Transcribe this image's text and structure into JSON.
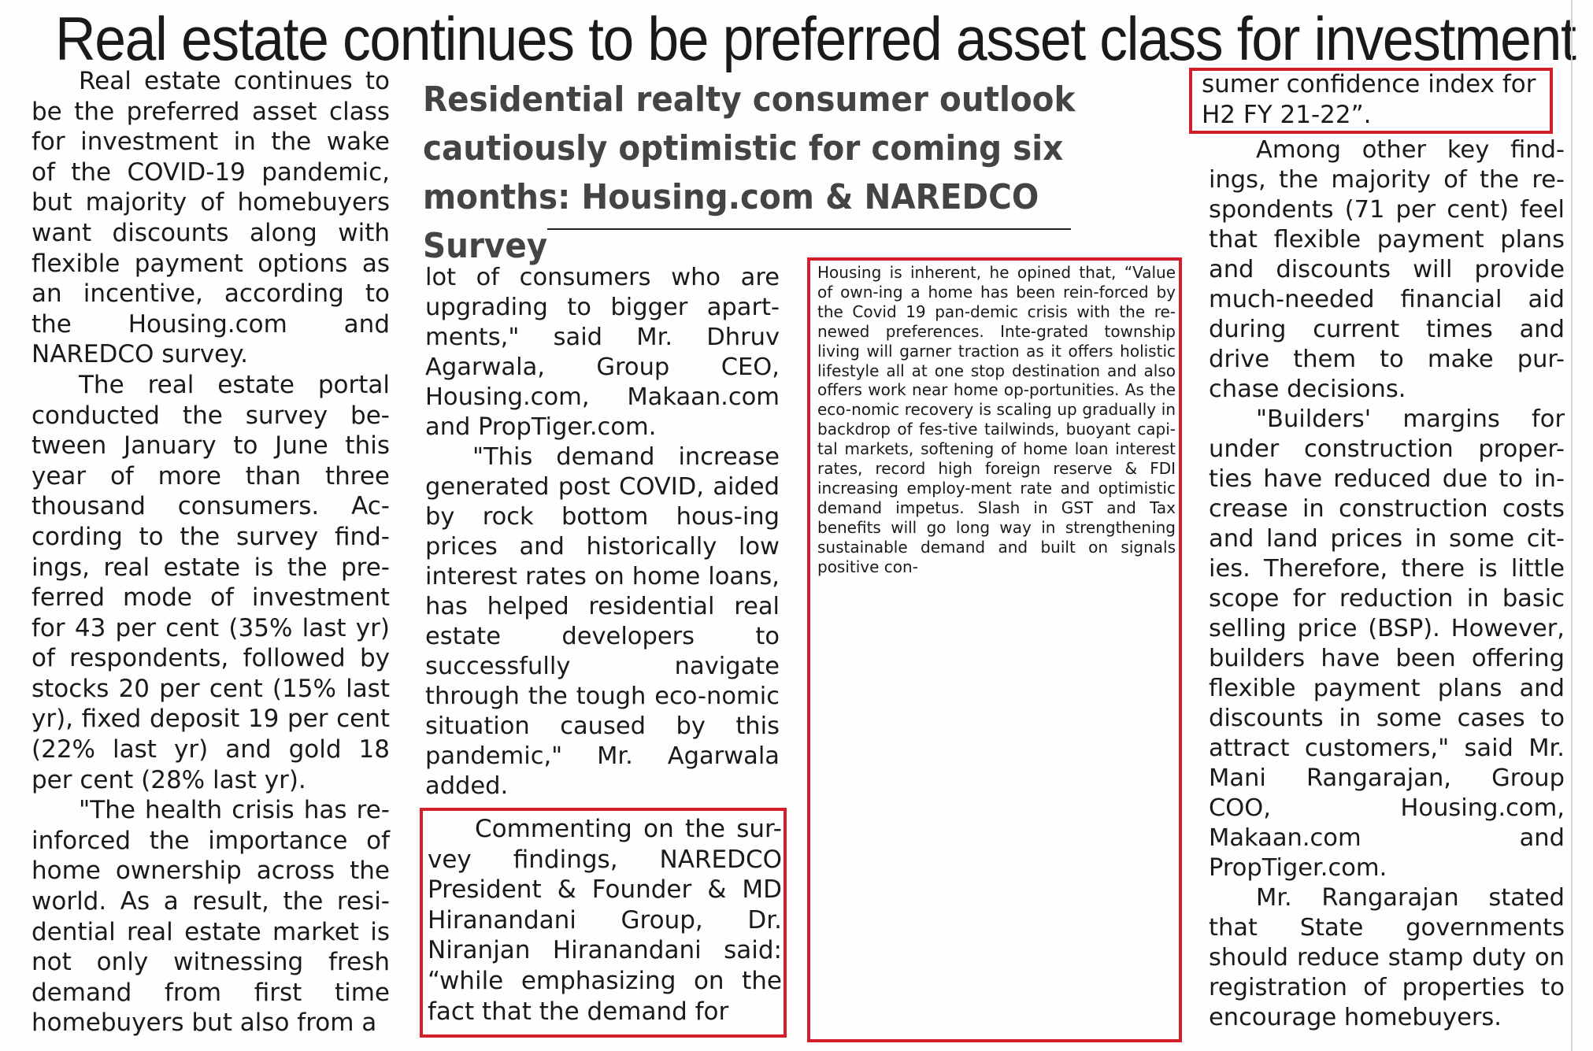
{
  "headline": "Real estate continues to be preferred asset class for investment",
  "subheadline": "Residential realty consumer outlook cautiously optimistic for coming six months: Housing.com & NAREDCO Survey",
  "accent_color": "#d21f2b",
  "column1": {
    "p1": "Real estate continues to be the preferred asset class for investment in the wake of the COVID-19 pandemic, but majority of homebuyers want discounts along with flexible payment options as an incentive, according to the Housing.com and NAREDCO survey.",
    "p2": "The real estate portal conducted the survey be-tween January to June this year of more than three thousand consumers. Ac-cording to the survey find-ings, real estate is the pre-ferred mode of investment for 43 per cent (35% last yr) of respondents, followed by stocks 20 per cent (15% last yr), fixed deposit 19 per cent (22% last yr) and gold 18 per cent (28% last yr).",
    "p3": "\"The health crisis has re-inforced the importance of home ownership across the world. As a result, the resi-dential real estate market is not only witnessing fresh demand from first time homebuyers but also from a"
  },
  "column2": {
    "p1": "lot of consumers who are upgrading to bigger apart-ments,\" said Mr. Dhruv Agarwala, Group CEO, Housing.com, Makaan.com and PropTiger.com.",
    "p2": "\"This demand increase generated post COVID, aided by rock bottom hous-ing prices and historically low interest rates on home loans, has helped residential real estate developers to successfully navigate through the tough eco-nomic situation caused by this pandemic,\" Mr. Agarwala added.",
    "p3": "Commenting on the sur-vey findings, NAREDCO President & Founder & MD Hiranandani Group, Dr. Niranjan Hiranandani said: “while emphasizing on the fact that the demand for"
  },
  "column3": {
    "p1": "Housing is inherent, he opined that, “Value of own-ing a home has been rein-forced by the Covid 19 pan-demic crisis with the re-newed preferences. Inte-grated township living will garner traction as it offers holistic lifestyle all at one stop destination and also offers work near home op-portunities. As the eco-nomic recovery is scaling up gradually in backdrop of fes-tive tailwinds, buoyant capi-tal markets, softening of home loan interest rates, record high foreign reserve & FDI increasing employ-ment rate and optimistic demand impetus. Slash in GST and Tax benefits will go long way in strengthening sustainable demand and built on signals positive con-"
  },
  "column4": {
    "p1": "sumer confidence index for H2 FY 21-22”.",
    "p2": "Among other key find-ings, the majority of the re-spondents (71 per cent) feel that flexible payment plans and discounts will provide much-needed financial aid during current times and drive them to make pur-chase decisions.",
    "p3": "\"Builders' margins for under construction proper-ties have reduced due to in-crease in construction costs and land prices in some cit-ies. Therefore, there is little scope for reduction in basic selling price (BSP). However, builders have been offering flexible payment plans and discounts in some cases to attract customers,\" said Mr. Mani Rangarajan, Group COO, Housing.com, Makaan.com and PropTiger.com.",
    "p4": "Mr. Rangarajan stated that State governments should reduce stamp duty on registration of properties to encourage homebuyers."
  }
}
